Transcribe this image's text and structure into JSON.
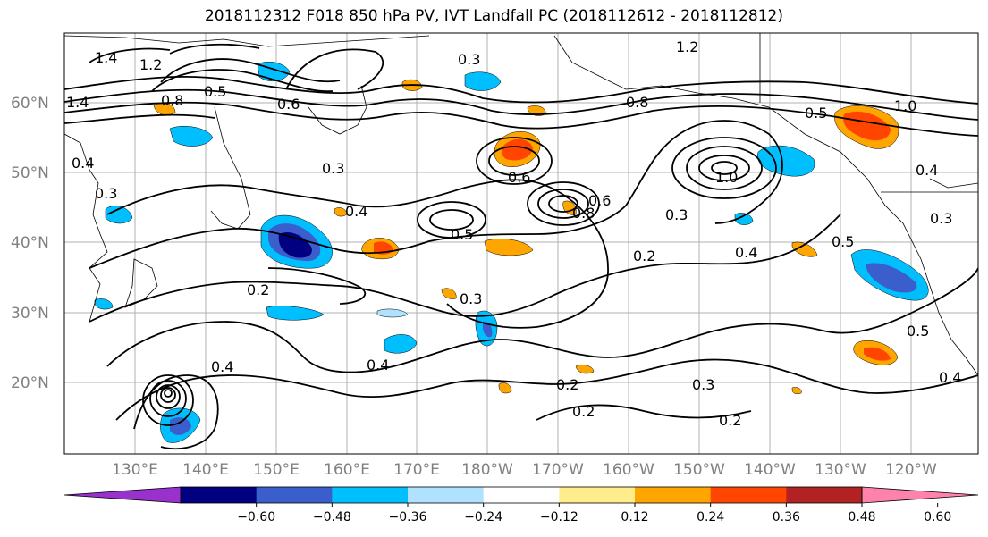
{
  "title": "2018112312 F018 850 hPa PV, IVT Landfall PC (2018112612 - 2018112812)",
  "lat_labels": [
    "60°N",
    "50°N",
    "40°N",
    "30°N",
    "20°N"
  ],
  "lon_labels": [
    "130°E",
    "140°E",
    "150°E",
    "160°E",
    "170°E",
    "180°W",
    "170°W",
    "160°W",
    "150°W",
    "140°W",
    "130°W",
    "120°W"
  ],
  "colorbar": {
    "ticks": [
      "−0.60",
      "−0.48",
      "−0.36",
      "−0.24",
      "−0.12",
      "0.12",
      "0.24",
      "0.36",
      "0.48",
      "0.60"
    ],
    "colors": [
      "#9932cc",
      "#000080",
      "#3a5fcd",
      "#00bfff",
      "#b0e2ff",
      "#ffffff",
      "#ffec8b",
      "#ffa500",
      "#ff4500",
      "#b22222",
      "#ff82ab"
    ]
  },
  "contour_labels": [
    "1.4",
    "1.2",
    "1.4",
    "0.5",
    "0.8",
    "0.4",
    "0.3",
    "0.6",
    "0.4",
    "0.5",
    "0.8",
    "0.6",
    "0.3",
    "0.2",
    "0.4",
    "0.3",
    "0.8",
    "0.6",
    "1.0",
    "0.3",
    "0.4",
    "0.2",
    "0.5",
    "0.3",
    "0.2",
    "0.4",
    "0.3",
    "0.2",
    "0.5",
    "0.4",
    "0.2",
    "0.3",
    "1.2",
    "1.0",
    "0.5",
    "0.4"
  ]
}
